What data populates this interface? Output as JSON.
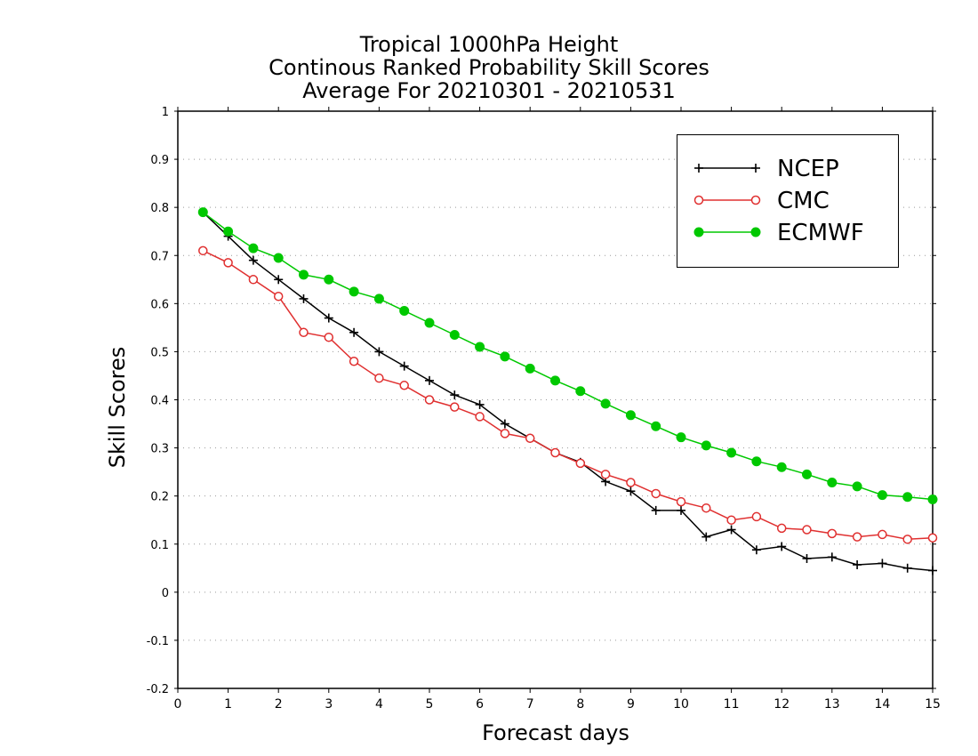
{
  "chart_data": {
    "type": "line",
    "title_lines": [
      "Tropical 1000hPa Height",
      "Continous Ranked Probability Skill Scores",
      "Average For 20210301 - 20210531"
    ],
    "xlabel": "Forecast days",
    "ylabel": "Skill Scores",
    "xlim": [
      0,
      15
    ],
    "ylim": [
      -0.2,
      1
    ],
    "xticks": [
      0,
      1,
      2,
      3,
      4,
      5,
      6,
      7,
      8,
      9,
      10,
      11,
      12,
      13,
      14,
      15
    ],
    "yticks": [
      -0.2,
      -0.1,
      0,
      0.1,
      0.2,
      0.3,
      0.4,
      0.5,
      0.6,
      0.7,
      0.8,
      0.9,
      1
    ],
    "ytick_labels": [
      "-0.2",
      "-0.1",
      "0",
      "0.1",
      "0.2",
      "0.3",
      "0.4",
      "0.5",
      "0.6",
      "0.7",
      "0.8",
      "0.9",
      "1"
    ],
    "grid": "horizontal dotted",
    "legend_position": "top-right",
    "x": [
      0.5,
      1,
      1.5,
      2,
      2.5,
      3,
      3.5,
      4,
      4.5,
      5,
      5.5,
      6,
      6.5,
      7,
      7.5,
      8,
      8.5,
      9,
      9.5,
      10,
      10.5,
      11,
      11.5,
      12,
      12.5,
      13,
      13.5,
      14,
      14.5,
      15
    ],
    "series": [
      {
        "name": "NCEP",
        "color": "#000000",
        "marker": "plus",
        "values": [
          0.79,
          0.74,
          0.69,
          0.65,
          0.61,
          0.57,
          0.54,
          0.5,
          0.47,
          0.44,
          0.41,
          0.39,
          0.35,
          0.32,
          0.29,
          0.27,
          0.23,
          0.21,
          0.17,
          0.17,
          0.115,
          0.13,
          0.088,
          0.095,
          0.07,
          0.073,
          0.057,
          0.06,
          0.05,
          0.045
        ]
      },
      {
        "name": "CMC",
        "color": "#e03030",
        "marker": "open-circle",
        "values": [
          0.71,
          0.685,
          0.65,
          0.615,
          0.54,
          0.53,
          0.48,
          0.445,
          0.43,
          0.4,
          0.385,
          0.365,
          0.33,
          0.32,
          0.29,
          0.268,
          0.245,
          0.228,
          0.205,
          0.188,
          0.175,
          0.15,
          0.157,
          0.133,
          0.13,
          0.122,
          0.115,
          0.12,
          0.11,
          0.113
        ]
      },
      {
        "name": "ECMWF",
        "color": "#00c800",
        "marker": "filled-circle",
        "values": [
          0.79,
          0.75,
          0.715,
          0.695,
          0.66,
          0.65,
          0.625,
          0.61,
          0.585,
          0.56,
          0.535,
          0.51,
          0.49,
          0.465,
          0.44,
          0.418,
          0.392,
          0.368,
          0.345,
          0.322,
          0.305,
          0.29,
          0.272,
          0.26,
          0.245,
          0.228,
          0.22,
          0.202,
          0.198,
          0.193
        ]
      }
    ]
  }
}
